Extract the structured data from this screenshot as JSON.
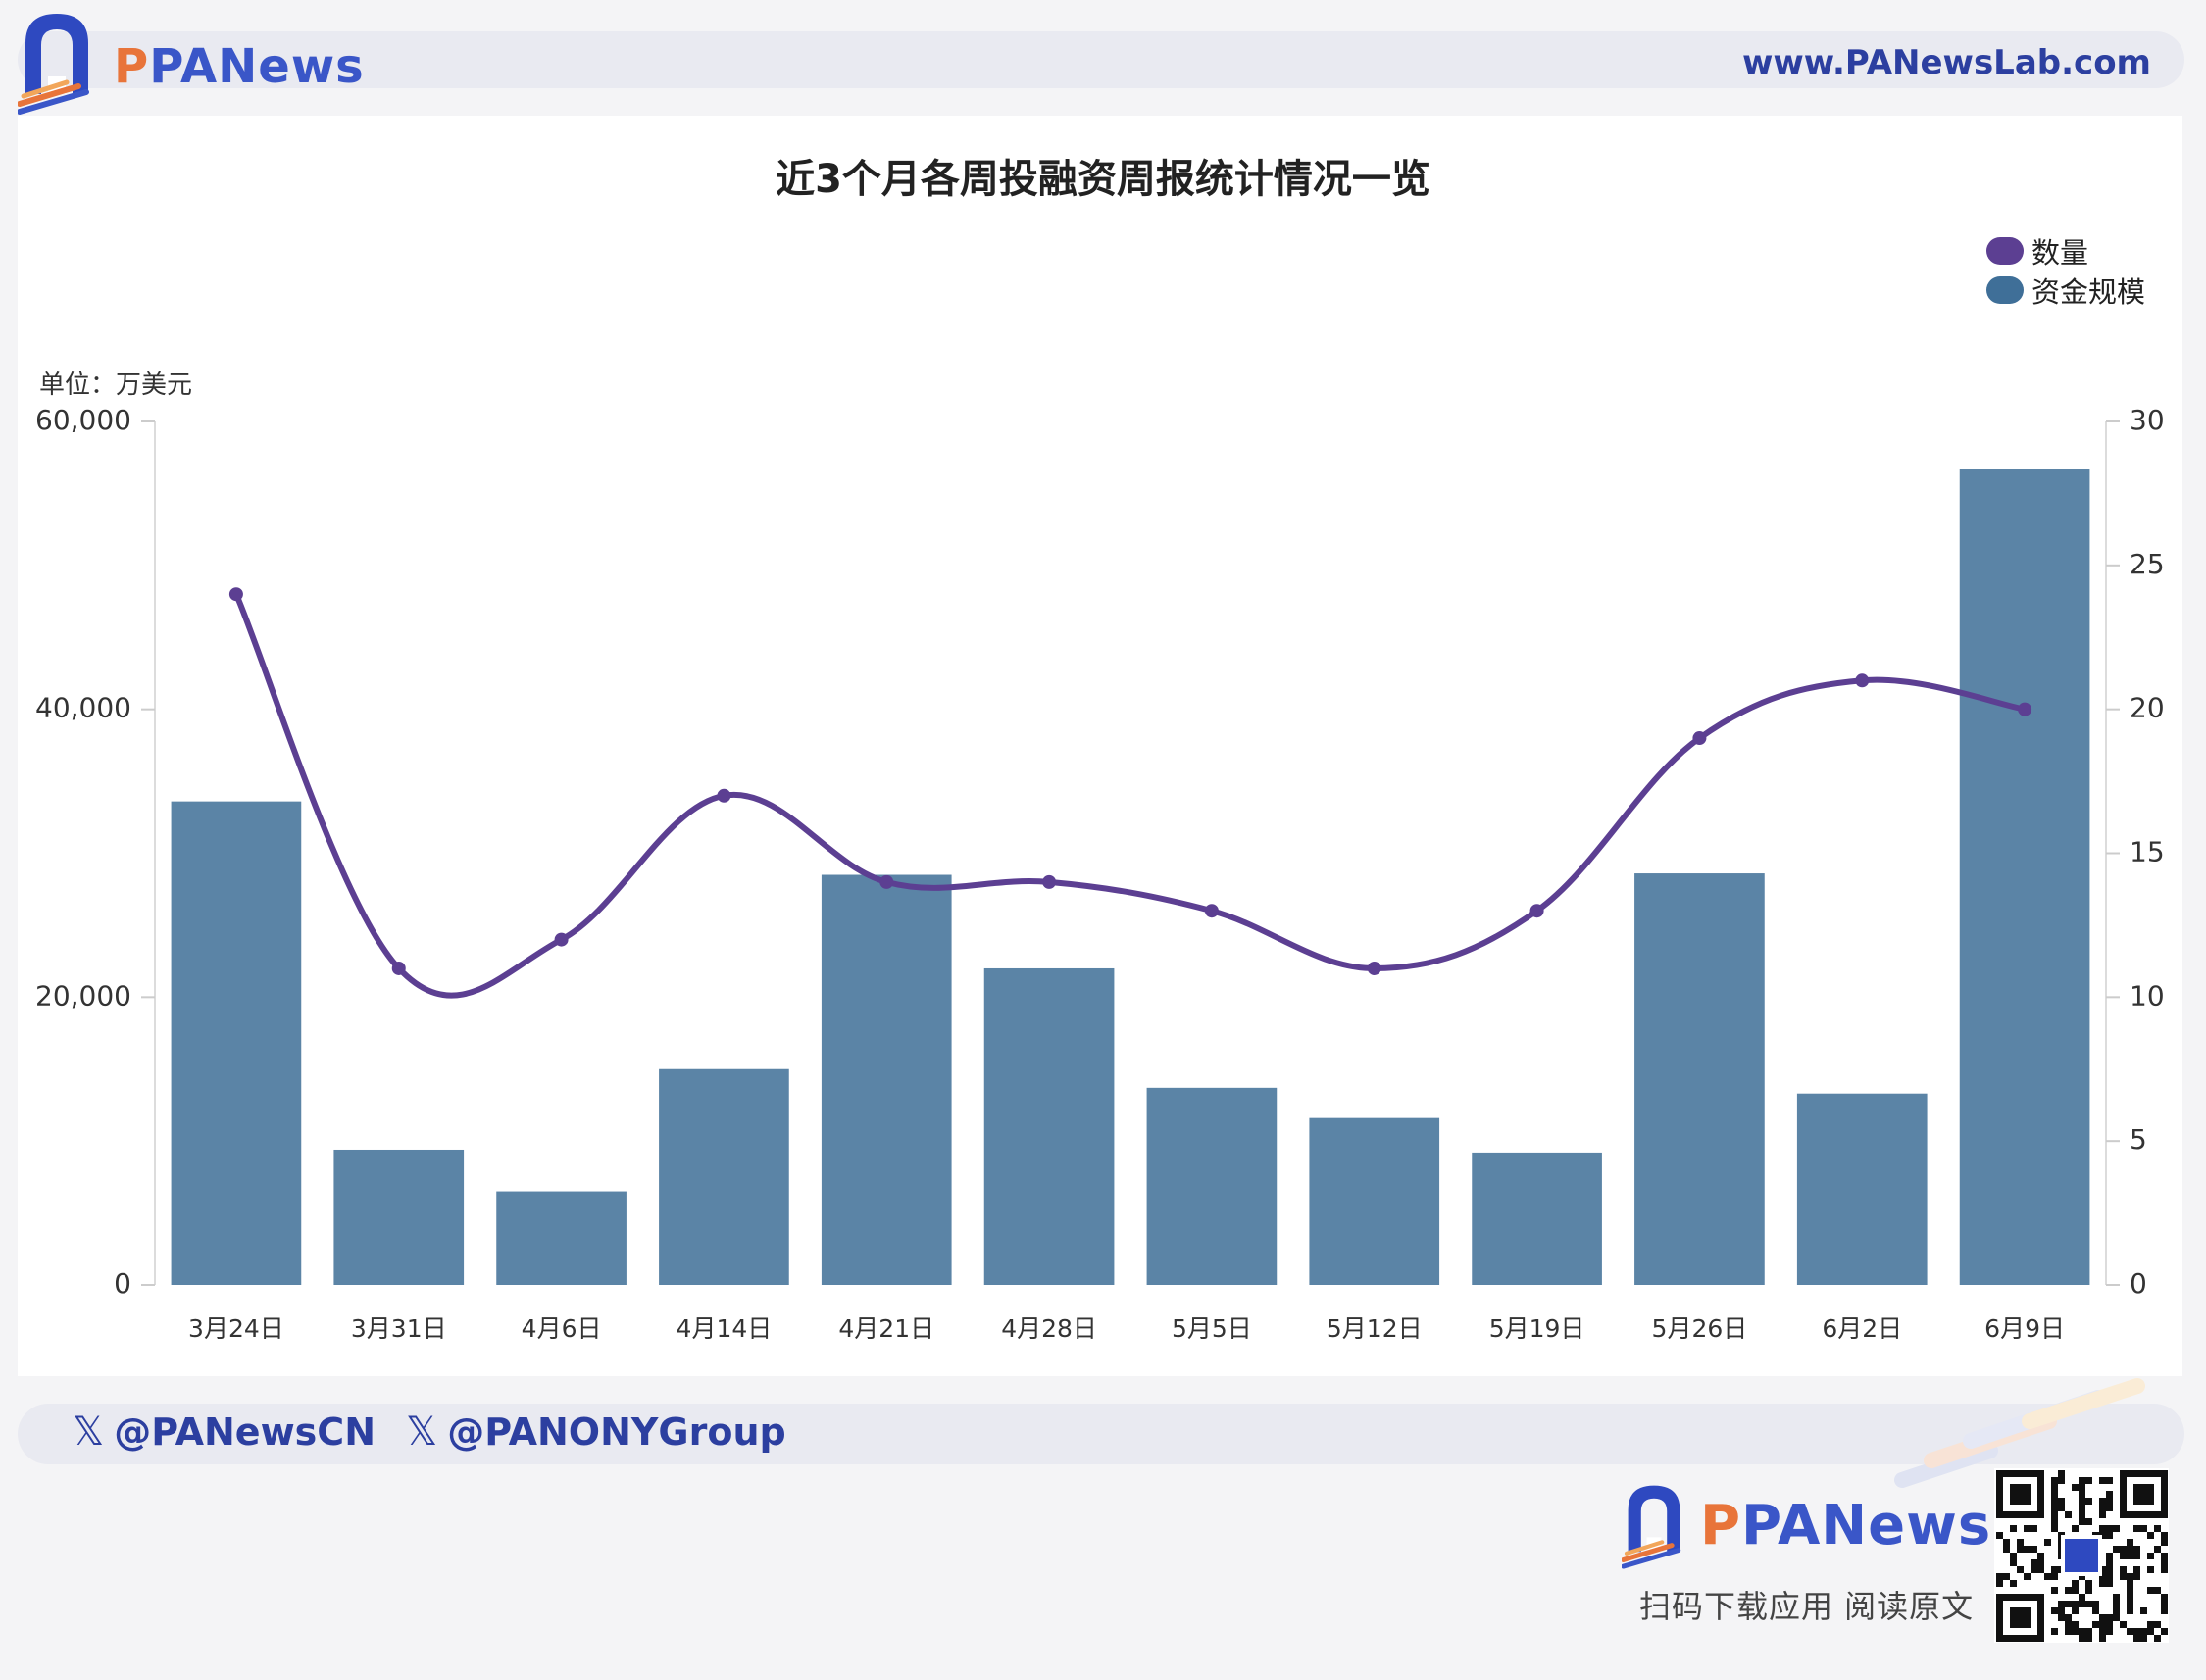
{
  "header": {
    "brand": "PANews",
    "url": "www.PANewsLab.com"
  },
  "chart_data": {
    "type": "bar",
    "title": "近3个月各周投融资周报统计情况一览",
    "unit_label": "单位：万美元",
    "categories": [
      "3月24日",
      "3月31日",
      "4月6日",
      "4月14日",
      "4月21日",
      "4月28日",
      "5月5日",
      "5月12日",
      "5月19日",
      "5月26日",
      "6月2日",
      "6月9日"
    ],
    "series": [
      {
        "name": "资金规模",
        "type": "bar",
        "axis": "left",
        "color": "#5b84a6",
        "values": [
          33600,
          9400,
          6500,
          15000,
          28500,
          22000,
          13700,
          11600,
          9200,
          28600,
          13300,
          56700
        ]
      },
      {
        "name": "数量",
        "type": "line",
        "axis": "right",
        "color": "#5c3f92",
        "values": [
          24,
          11,
          12,
          17,
          14,
          14,
          13,
          11,
          13,
          19,
          21,
          20
        ]
      }
    ],
    "left_axis": {
      "min": 0,
      "max": 60000,
      "ticks": [
        "0",
        "20,000",
        "40,000",
        "60,000"
      ],
      "tick_values": [
        0,
        20000,
        40000,
        60000
      ]
    },
    "right_axis": {
      "min": 0,
      "max": 30,
      "ticks": [
        "0",
        "5",
        "10",
        "15",
        "20",
        "25",
        "30"
      ],
      "tick_values": [
        0,
        5,
        10,
        15,
        20,
        25,
        30
      ]
    },
    "legend": [
      {
        "label": "数量",
        "color": "#5c3f92"
      },
      {
        "label": "资金规模",
        "color": "#3f6f98"
      }
    ],
    "legend_position": "top-right",
    "grid": false
  },
  "footer": {
    "social": [
      "@PANewsCN",
      "@PANONYGroup"
    ],
    "brand": "PANews",
    "caption": "扫码下载应用  阅读原文"
  }
}
